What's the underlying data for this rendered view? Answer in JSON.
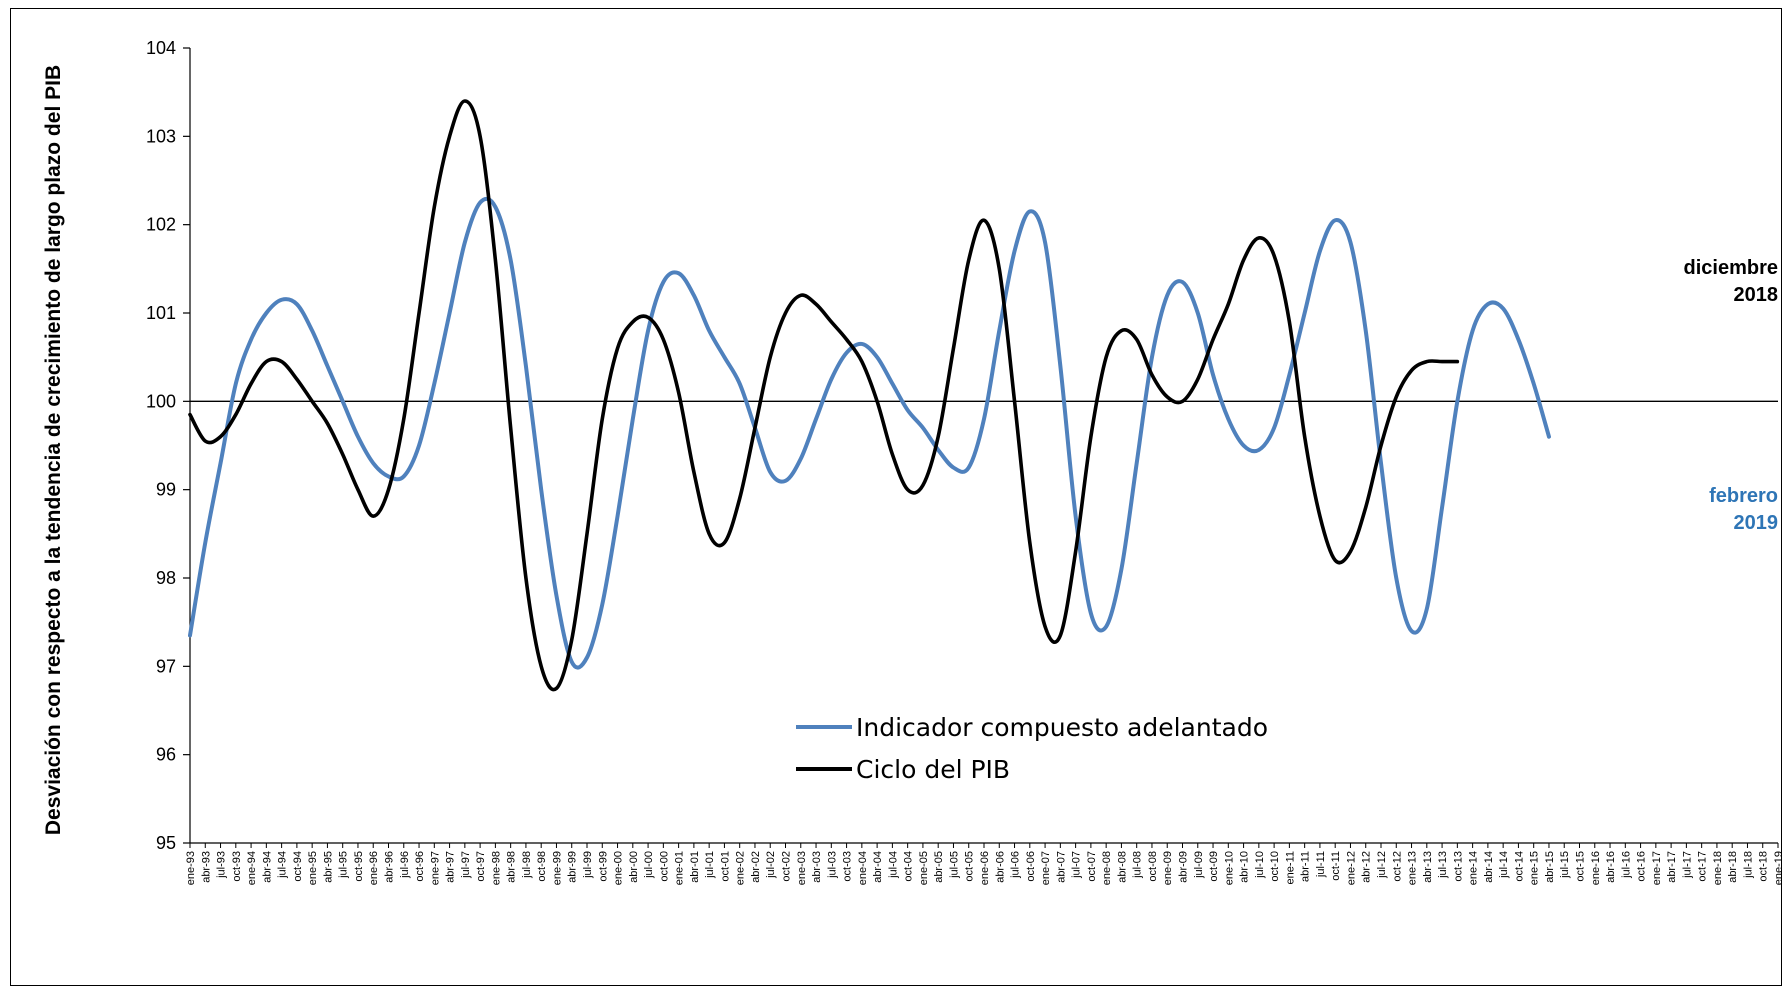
{
  "chart_data": {
    "type": "line",
    "ylabel": "Desviación con respecto a la tendencia de crecimiento de largo plazo del PIB",
    "xlabel": "",
    "ylim": [
      95,
      104
    ],
    "yticks": [
      "95",
      "96",
      "97",
      "98",
      "99",
      "100",
      "101",
      "102",
      "103",
      "104"
    ],
    "reference_line": 100,
    "legend_position": "lower-center",
    "xticks": [
      "ene-93",
      "abr-93",
      "jul-93",
      "oct-93",
      "ene-94",
      "abr-94",
      "jul-94",
      "oct-94",
      "ene-95",
      "abr-95",
      "jul-95",
      "oct-95",
      "ene-96",
      "abr-96",
      "jul-96",
      "oct-96",
      "ene-97",
      "abr-97",
      "jul-97",
      "oct-97",
      "ene-98",
      "abr-98",
      "jul-98",
      "oct-98",
      "ene-99",
      "abr-99",
      "jul-99",
      "oct-99",
      "ene-00",
      "abr-00",
      "jul-00",
      "oct-00",
      "ene-01",
      "abr-01",
      "jul-01",
      "oct-01",
      "ene-02",
      "abr-02",
      "jul-02",
      "oct-02",
      "ene-03",
      "abr-03",
      "jul-03",
      "oct-03",
      "ene-04",
      "abr-04",
      "jul-04",
      "oct-04",
      "ene-05",
      "abr-05",
      "jul-05",
      "oct-05",
      "ene-06",
      "abr-06",
      "jul-06",
      "oct-06",
      "ene-07",
      "abr-07",
      "jul-07",
      "oct-07",
      "ene-08",
      "abr-08",
      "jul-08",
      "oct-08",
      "ene-09",
      "abr-09",
      "jul-09",
      "oct-09",
      "ene-10",
      "abr-10",
      "jul-10",
      "oct-10",
      "ene-11",
      "abr-11",
      "jul-11",
      "oct-11",
      "ene-12",
      "abr-12",
      "jul-12",
      "oct-12",
      "ene-13",
      "abr-13",
      "jul-13",
      "oct-13",
      "ene-14",
      "abr-14",
      "jul-14",
      "oct-14",
      "ene-15",
      "abr-15",
      "jul-15",
      "oct-15",
      "ene-16",
      "abr-16",
      "jul-16",
      "oct-16",
      "ene-17",
      "abr-17",
      "jul-17",
      "oct-17",
      "ene-18",
      "abr-18",
      "jul-18",
      "oct-18",
      "ene-19"
    ],
    "series": [
      {
        "name": "Indicador compuesto adelantado",
        "color": "#4F81BD",
        "points": [
          [
            "ene-93",
            97.35
          ],
          [
            "abr-93",
            98.4
          ],
          [
            "jul-93",
            99.3
          ],
          [
            "oct-93",
            100.2
          ],
          [
            "ene-94",
            100.7
          ],
          [
            "abr-94",
            101.0
          ],
          [
            "jul-94",
            101.15
          ],
          [
            "oct-94",
            101.1
          ],
          [
            "ene-95",
            100.8
          ],
          [
            "abr-95",
            100.4
          ],
          [
            "jul-95",
            100.0
          ],
          [
            "oct-95",
            99.6
          ],
          [
            "ene-96",
            99.3
          ],
          [
            "abr-96",
            99.15
          ],
          [
            "jul-96",
            99.15
          ],
          [
            "oct-96",
            99.5
          ],
          [
            "ene-97",
            100.2
          ],
          [
            "abr-97",
            101.0
          ],
          [
            "jul-97",
            101.8
          ],
          [
            "oct-97",
            102.25
          ],
          [
            "ene-98",
            102.2
          ],
          [
            "abr-98",
            101.6
          ],
          [
            "jul-98",
            100.4
          ],
          [
            "oct-98",
            99.0
          ],
          [
            "ene-99",
            97.8
          ],
          [
            "abr-99",
            97.05
          ],
          [
            "jul-99",
            97.1
          ],
          [
            "oct-99",
            97.7
          ],
          [
            "ene-00",
            98.7
          ],
          [
            "abr-00",
            99.8
          ],
          [
            "jul-00",
            100.8
          ],
          [
            "oct-00",
            101.35
          ],
          [
            "ene-01",
            101.45
          ],
          [
            "abr-01",
            101.2
          ],
          [
            "jul-01",
            100.8
          ],
          [
            "oct-01",
            100.5
          ],
          [
            "ene-02",
            100.2
          ],
          [
            "abr-02",
            99.7
          ],
          [
            "jul-02",
            99.2
          ],
          [
            "oct-02",
            99.1
          ],
          [
            "ene-03",
            99.35
          ],
          [
            "abr-03",
            99.8
          ],
          [
            "jul-03",
            100.25
          ],
          [
            "oct-03",
            100.55
          ],
          [
            "ene-04",
            100.65
          ],
          [
            "abr-04",
            100.5
          ],
          [
            "jul-04",
            100.2
          ],
          [
            "oct-04",
            99.9
          ],
          [
            "ene-05",
            99.7
          ],
          [
            "abr-05",
            99.45
          ],
          [
            "jul-05",
            99.25
          ],
          [
            "oct-05",
            99.25
          ],
          [
            "ene-06",
            99.8
          ],
          [
            "abr-06",
            100.8
          ],
          [
            "jul-06",
            101.7
          ],
          [
            "oct-06",
            102.15
          ],
          [
            "ene-07",
            101.8
          ],
          [
            "abr-07",
            100.4
          ],
          [
            "jul-07",
            98.7
          ],
          [
            "oct-07",
            97.6
          ],
          [
            "ene-08",
            97.45
          ],
          [
            "abr-08",
            98.1
          ],
          [
            "jul-08",
            99.3
          ],
          [
            "oct-08",
            100.5
          ],
          [
            "ene-09",
            101.2
          ],
          [
            "abr-09",
            101.35
          ],
          [
            "jul-09",
            101.0
          ],
          [
            "oct-09",
            100.3
          ],
          [
            "ene-10",
            99.8
          ],
          [
            "abr-10",
            99.5
          ],
          [
            "jul-10",
            99.45
          ],
          [
            "oct-10",
            99.7
          ],
          [
            "ene-11",
            100.3
          ],
          [
            "abr-11",
            101.0
          ],
          [
            "jul-11",
            101.7
          ],
          [
            "oct-11",
            102.05
          ],
          [
            "ene-12",
            101.8
          ],
          [
            "abr-12",
            100.8
          ],
          [
            "jul-12",
            99.3
          ],
          [
            "oct-12",
            98.0
          ],
          [
            "ene-13",
            97.4
          ],
          [
            "abr-13",
            97.65
          ],
          [
            "jul-13",
            98.8
          ],
          [
            "oct-13",
            100.0
          ],
          [
            "ene-14",
            100.8
          ],
          [
            "abr-14",
            101.1
          ],
          [
            "jul-14",
            101.05
          ],
          [
            "oct-14",
            100.7
          ],
          [
            "ene-15",
            100.2
          ],
          [
            "abr-15",
            99.6
          ]
        ]
      },
      {
        "name": "Ciclo del PIB",
        "color": "#000000",
        "points": [
          [
            "ene-93",
            99.85
          ],
          [
            "abr-93",
            99.55
          ],
          [
            "jul-93",
            99.6
          ],
          [
            "oct-93",
            99.85
          ],
          [
            "ene-94",
            100.2
          ],
          [
            "abr-94",
            100.45
          ],
          [
            "jul-94",
            100.45
          ],
          [
            "oct-94",
            100.25
          ],
          [
            "ene-95",
            100.0
          ],
          [
            "abr-95",
            99.75
          ],
          [
            "jul-95",
            99.4
          ],
          [
            "oct-95",
            99.0
          ],
          [
            "ene-96",
            98.7
          ],
          [
            "abr-96",
            99.0
          ],
          [
            "jul-96",
            99.8
          ],
          [
            "oct-96",
            101.0
          ],
          [
            "ene-97",
            102.2
          ],
          [
            "abr-97",
            103.0
          ],
          [
            "jul-97",
            103.4
          ],
          [
            "oct-97",
            103.0
          ],
          [
            "ene-98",
            101.6
          ],
          [
            "abr-98",
            99.7
          ],
          [
            "jul-98",
            98.0
          ],
          [
            "oct-98",
            97.0
          ],
          [
            "ene-99",
            96.75
          ],
          [
            "abr-99",
            97.3
          ],
          [
            "jul-99",
            98.5
          ],
          [
            "oct-99",
            99.8
          ],
          [
            "ene-00",
            100.6
          ],
          [
            "abr-00",
            100.9
          ],
          [
            "jul-00",
            100.95
          ],
          [
            "oct-00",
            100.7
          ],
          [
            "ene-01",
            100.1
          ],
          [
            "abr-01",
            99.2
          ],
          [
            "jul-01",
            98.5
          ],
          [
            "oct-01",
            98.4
          ],
          [
            "ene-02",
            98.9
          ],
          [
            "abr-02",
            99.7
          ],
          [
            "jul-02",
            100.5
          ],
          [
            "oct-02",
            101.0
          ],
          [
            "ene-03",
            101.2
          ],
          [
            "abr-03",
            101.1
          ],
          [
            "jul-03",
            100.9
          ],
          [
            "oct-03",
            100.7
          ],
          [
            "ene-04",
            100.45
          ],
          [
            "abr-04",
            100.0
          ],
          [
            "jul-04",
            99.4
          ],
          [
            "oct-04",
            99.0
          ],
          [
            "ene-05",
            99.05
          ],
          [
            "abr-05",
            99.6
          ],
          [
            "jul-05",
            100.6
          ],
          [
            "oct-05",
            101.6
          ],
          [
            "ene-06",
            102.05
          ],
          [
            "abr-06",
            101.5
          ],
          [
            "jul-06",
            100.0
          ],
          [
            "oct-06",
            98.4
          ],
          [
            "ene-07",
            97.45
          ],
          [
            "abr-07",
            97.35
          ],
          [
            "jul-07",
            98.3
          ],
          [
            "oct-07",
            99.6
          ],
          [
            "ene-08",
            100.5
          ],
          [
            "abr-08",
            100.8
          ],
          [
            "jul-08",
            100.7
          ],
          [
            "oct-08",
            100.3
          ],
          [
            "ene-09",
            100.05
          ],
          [
            "abr-09",
            100.0
          ],
          [
            "jul-09",
            100.25
          ],
          [
            "oct-09",
            100.7
          ],
          [
            "ene-10",
            101.1
          ],
          [
            "abr-10",
            101.6
          ],
          [
            "jul-10",
            101.85
          ],
          [
            "oct-10",
            101.65
          ],
          [
            "ene-11",
            100.9
          ],
          [
            "abr-11",
            99.6
          ],
          [
            "jul-11",
            98.7
          ],
          [
            "oct-11",
            98.2
          ],
          [
            "ene-12",
            98.3
          ],
          [
            "abr-12",
            98.8
          ],
          [
            "jul-12",
            99.5
          ],
          [
            "oct-12",
            100.05
          ],
          [
            "ene-13",
            100.35
          ],
          [
            "abr-13",
            100.45
          ],
          [
            "jul-13",
            100.45
          ],
          [
            "oct-13",
            100.45
          ]
        ]
      }
    ],
    "annotations": [
      {
        "text": "diciembre",
        "text2": "2018",
        "color": "#000000"
      },
      {
        "text": "febrero",
        "text2": "2019",
        "color": "#2E75B6"
      }
    ]
  }
}
